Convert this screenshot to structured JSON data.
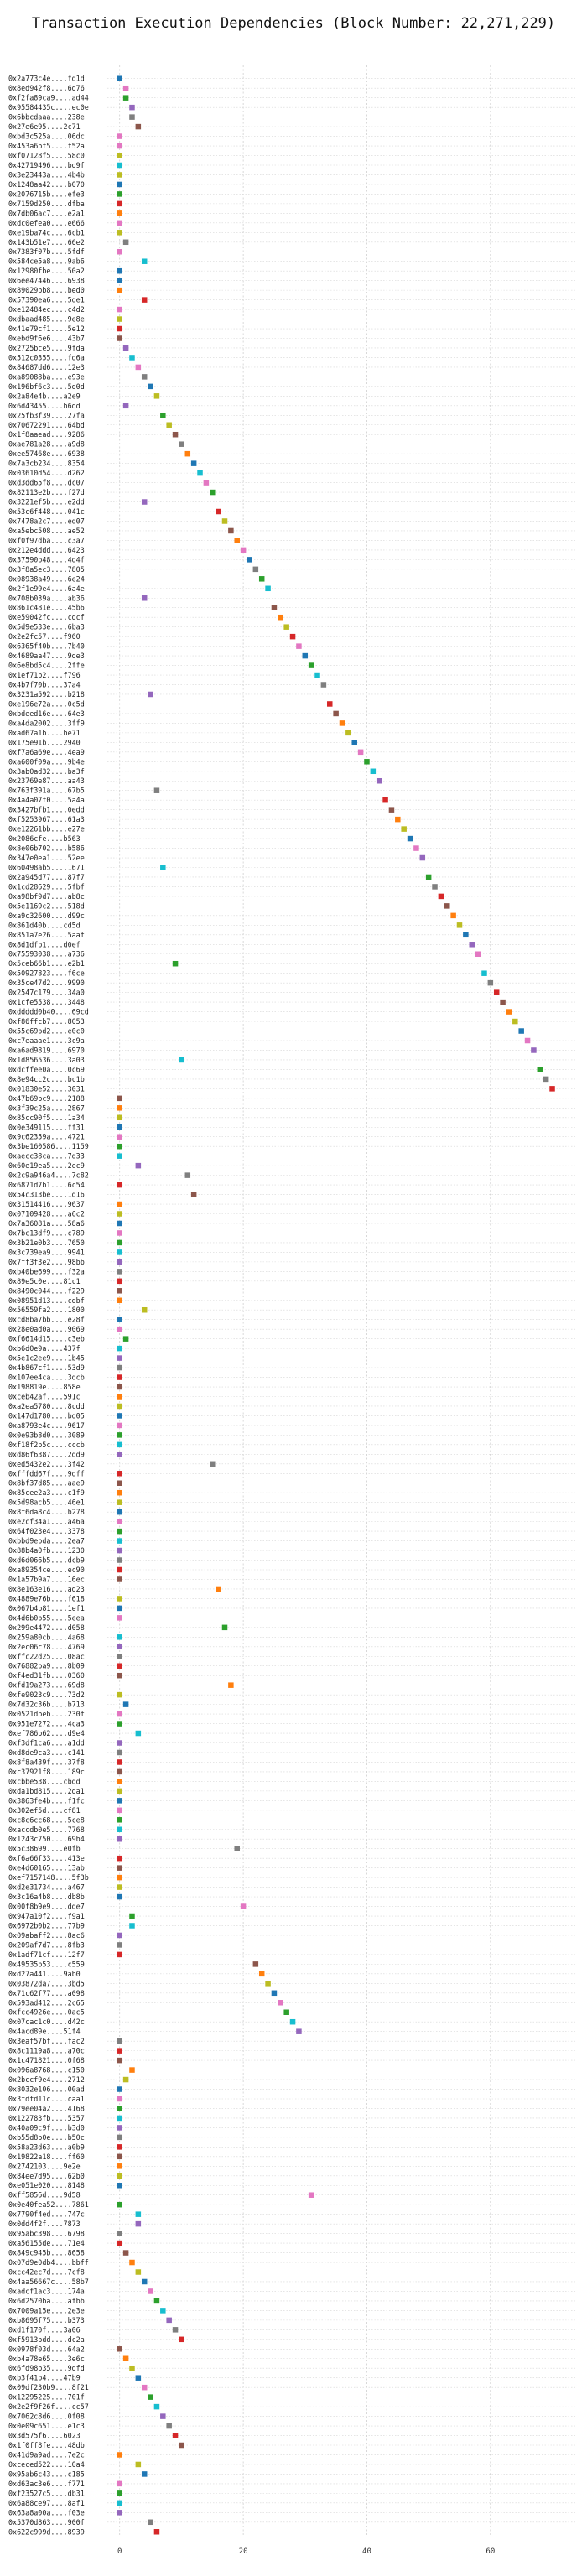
{
  "chart_data": {
    "type": "scatter",
    "title": "Transaction Execution Dependencies (Block Number: 22,271,229)",
    "xlabel": "",
    "ylabel": "",
    "xlim": [
      -2,
      74
    ],
    "xticks": [
      0,
      20,
      40,
      60
    ],
    "grid": true,
    "palette": [
      "#1f77b4",
      "#ff7f0e",
      "#2ca02c",
      "#d62728",
      "#9467bd",
      "#8c564b",
      "#e377c2",
      "#7f7f7f",
      "#bcbd22",
      "#17becf"
    ],
    "categories": [
      "0x2a773c4e....fd1d",
      "0x8ed942f8....6d76",
      "0xf2fa89ca9....ad44",
      "0x95584435c....ec0e",
      "0x6bbcdaaa....238e",
      "0x27e6e95....2c71",
      "0xbd3c525a....06dc",
      "0x453a6bf5....f52a",
      "0xf07128f5....58c0",
      "0x42719496....bd9f",
      "0x3e23443a....4b4b",
      "0x1248aa42....b070",
      "0x2076715b....efe3",
      "0x7159d250....dfba",
      "0x7db06ac7....e2a1",
      "0xdc0efea0....e666",
      "0xe19ba74c....6cb1",
      "0x143b51e7....66e2",
      "0x7383f07b....5fdf",
      "0x584ce5a8....9ab6",
      "0x12980fbe....50a2",
      "0x6ee47446....6938",
      "0x89029bb8....bed0",
      "0x57390ea6....5de1",
      "0xe12484ec....c4d2",
      "0xdbaad485....9e8e",
      "0x41e79cf1....5e12",
      "0xebd9f6e6....43b7",
      "0x2725bce5....9fda",
      "0x512c0355....fd6a",
      "0x84687dd6....12e3",
      "0xa89088ba....e93e",
      "0x196bf6c3....5d0d",
      "0x2a84e4b....a2e9",
      "0x6d43455....b6dd",
      "0x25fb3f39....27fa",
      "0x70672291....64bd",
      "0x1f8aaead....9286",
      "0xae781a28....a9d8",
      "0xee57468e....6938",
      "0x7a3cb234....8354",
      "0x03610d54....d262",
      "0xd3dd65f8....dc07",
      "0x82113e2b....f27d",
      "0x3221ef5b....e2dd",
      "0x53c6f448....041c",
      "0x7478a2c7....ed07",
      "0xa5ebc508....ae52",
      "0xf0f97dba....c3a7",
      "0x212e4ddd....6423",
      "0x37590b48....4d4f",
      "0x3f8a5ec3....7805",
      "0x08938a49....6e24",
      "0x2f1e99e4....6a4e",
      "0x708b039a....ab36",
      "0x861c481e....45b6",
      "0xe59042fc....cdcf",
      "0x5d9e533e....6ba3",
      "0x2e2fc57....f960",
      "0x6365f40b....7b40",
      "0x4689aa47....9de3",
      "0x6e8bd5c4....2ffe",
      "0x1ef71b2....f796",
      "0x4b7f70b....37a4",
      "0x3231a592....b218",
      "0xe196e72a....0c5d",
      "0xbdeed16e....64e3",
      "0xa4da2002....3ff9",
      "0xad67a1b....be71",
      "0x175e91b....2940",
      "0xf7a6a69e....4ea9",
      "0xa600f09a....9b4e",
      "0x3ab0ad32....ba3f",
      "0x23769e87....aa43",
      "0x763f391a....67b5",
      "0x4a4a07f0....5a4a",
      "0x3427bfb1....0edd",
      "0xf5253967....61a3",
      "0xe12261bb....e27e",
      "0x2086cfe....b563",
      "0x8e06b702....b586",
      "0x347e0ea1....52ee",
      "0x60498ab5....1671",
      "0x2a945d77....87f7",
      "0x1cd28629....5fbf",
      "0xa98bf9d7....ab8c",
      "0x5e1169c2....518d",
      "0xa9c32600....d99c",
      "0x861d40b....cd5d",
      "0x851a7e26....5aaf",
      "0x8d1dfb1....d0ef",
      "0x75593038....a736",
      "0x5ceb66b1....e2b1",
      "0x50927823....f6ce",
      "0x35ce47d2....9990",
      "0x2547c179....34a0",
      "0x1cfe5538....3448",
      "0xddddd0b40....69cd",
      "0xf86ffcb7....8053",
      "0x55c69bd2....e0c0",
      "0xc7eaaae1....3c9a",
      "0xa6ad9819....6970",
      "0x1d856536....3a03",
      "0xdcffee0a....0c69",
      "0x8e94cc2c....bc1b",
      "0x01830e52....3031",
      "0x47b69bc9....2188",
      "0x3f39c25a....2867",
      "0x85cc90f5....1a34",
      "0x0e349115....ff31",
      "0x9c62359a....4721",
      "0x3be160586....1159",
      "0xaecc38ca....7d33",
      "0x60e19ea5....2ec9",
      "0x2c9a946a4....7c82",
      "0x6871d7b1....6c54",
      "0x54c313be....1d16",
      "0x31514416....9637",
      "0x07109428....a6c2",
      "0x7a36081a....58a6",
      "0x7bc13df9....c789",
      "0x3b21e0b3....7650",
      "0x3c739ea9....9941",
      "0x7ff3f3e2....98bb",
      "0xb40be699....f32a",
      "0x89e5c0e....81c1",
      "0x8490c044....f229",
      "0x08951d13....cdbf",
      "0x56559fa2....1800",
      "0xcd8ba7bb....e28f",
      "0x28e0ad0a....9069",
      "0xf6614d15....c3eb",
      "0xb6d0e9a....437f",
      "0x5e1c2ee9....1b45",
      "0x4b867cf1....53d9",
      "0x107ee4ca....3dcb",
      "0x198819e....858e",
      "0xceb42af....591c",
      "0xa2ea5780....8cdd",
      "0x147d1780....bd05",
      "0xa8793e4c....9617",
      "0x0e93b8d0....3089",
      "0xf18f2b5c....cccb",
      "0xd86f6387....2dd9",
      "0xed5432e2....3f42",
      "0xfffdd67f....9dff",
      "0x8bf37d85....aae9",
      "0x85cee2a3....c1f9",
      "0x5d98acb5....46e1",
      "0x8f6da8c4....b278",
      "0xe2cf34a1....a46a",
      "0x64f023e4....3378",
      "0xbbd9ebda....2ea7",
      "0x88b4a0fb....1230",
      "0xd6d066b5....dcb9",
      "0xa89354ce....ec90",
      "0x1a57b9a7....16ec",
      "0x8e163e16....ad23",
      "0x4889e76b....f618",
      "0x067b4b81....1ef1",
      "0x4d6b0b55....5eea",
      "0x299e4472....d058",
      "0x259a80cb....4a68",
      "0x2ec06c78....4769",
      "0xffc22d25....08ac",
      "0x76882ba9....8b09",
      "0xf4ed31fb....0360",
      "0xfd19a273....69d8",
      "0xfe9023c9....73d2",
      "0x7d32c36b....b713",
      "0x0521dbeb....230f",
      "0x951e7272....4ca3",
      "0xef786b62....d9e4",
      "0xf3df1ca6....a1dd",
      "0xd8de9ca3....c141",
      "0x8f8a439f....37f8",
      "0xc37921f8....189c",
      "0xcbbe538....cbdd",
      "0xda1bd815....2da1",
      "0x3863fe4b....f1fc",
      "0x302ef5d....cf81",
      "0xc8c6cc68....5ce8",
      "0xaccdb0e5....7768",
      "0x1243c750....69b4",
      "0x5c38699....e0fb",
      "0xf6a66f33....413e",
      "0xe4d60165....13ab",
      "0xef7157148....5f3b",
      "0xd2e31734....a467",
      "0x3c16a4b8....db8b",
      "0x00f8b9e9....dde7",
      "0x947a10f2....f9a1",
      "0x6972b0b2....77b9",
      "0x09abaff2....8ac6",
      "0x209af7d7....8fb3",
      "0x1adf71cf....12f7",
      "0x49535b53....c559",
      "0xd27a441....9ab0",
      "0x03872da7....3bd5",
      "0x71c62f77....a098",
      "0x593ad412....2c65",
      "0xfcc4926e....0ac5",
      "0x07cac1c0....d42c",
      "0x4acd89e....51f4",
      "0x3eaf57bf....fac2",
      "0x8c1119a8....a70c",
      "0x1c471821....0f68",
      "0x096a8768....c150",
      "0x2bccf9e4....2712",
      "0x8032e106....00ad",
      "0x3fdfd11c....caa1",
      "0x79ee04a2....4168",
      "0x122783fb....5357",
      "0x40a09c9f....b3d0",
      "0xb55d8b0e....b50c",
      "0x58a23d63....a0b9",
      "0x19822a18....ff60",
      "0x2742103....9e2e",
      "0x84ee7d95....62b0",
      "0xe051e020....8148",
      "0xff5856d....9d58",
      "0x0e40fea52....7861",
      "0x7790f4ed....747c",
      "0x0dd4f2f....7873",
      "0x95abc398....6798",
      "0xa56155de....71e4",
      "0x849c945b....8658",
      "0x07d9e0db4....bbff",
      "0xcc42ec7d....7cf8",
      "0x4aa56667c....58b7",
      "0xadcf1ac3....174a",
      "0x6d2570ba....afbb",
      "0x7009a15e....2e3e",
      "0xb8695f75....b373",
      "0xd1f170f....3a06",
      "0xf5913bdd....dc2a",
      "0x0978f03d....64a2",
      "0xb4a78e65....3e6c",
      "0x6fd98b35....9dfd",
      "0xb3f41b4....47b9",
      "0x09df230b9....8f21",
      "0x12295225....701f",
      "0x2e2f9f26f....cc57",
      "0x7062c8d6....0f08",
      "0x0e09c651....e1c3",
      "0x3d575f6....6023",
      "0x1f0ff8fe....48db",
      "0x41d9a9ad....7e2c",
      "0xceced522....10a4",
      "0x95ab6c43....c185",
      "0xd63ac3e6....f771",
      "0xf23527c5....db31",
      "0x6a88ce97....8af1",
      "0x63a8a00a....f03e",
      "0x5370d863....900f",
      "0x622c999d....8939"
    ],
    "x": [
      0,
      1,
      1,
      2,
      2,
      3,
      0,
      0,
      0,
      0,
      0,
      0,
      0,
      0,
      0,
      0,
      0,
      1,
      0,
      4,
      0,
      0,
      0,
      4,
      0,
      0,
      0,
      0,
      1,
      2,
      3,
      4,
      5,
      6,
      1,
      7,
      8,
      9,
      10,
      11,
      12,
      13,
      14,
      15,
      4,
      16,
      17,
      18,
      19,
      20,
      21,
      22,
      23,
      24,
      4,
      25,
      26,
      27,
      28,
      29,
      30,
      31,
      32,
      33,
      5,
      34,
      35,
      36,
      37,
      38,
      39,
      40,
      41,
      42,
      6,
      43,
      44,
      45,
      46,
      47,
      48,
      49,
      7,
      50,
      51,
      52,
      53,
      54,
      55,
      56,
      57,
      58,
      9,
      59,
      60,
      61,
      62,
      63,
      64,
      65,
      66,
      67,
      10,
      68,
      69,
      70,
      0,
      0,
      0,
      0,
      0,
      0,
      0,
      3,
      11,
      0,
      12,
      0,
      0,
      0,
      0,
      0,
      0,
      0,
      0,
      0,
      0,
      0,
      4,
      0,
      0,
      1,
      0,
      0,
      0,
      0,
      0,
      0,
      0,
      0,
      0,
      0,
      0,
      0,
      15,
      0,
      0,
      0,
      0,
      0,
      0,
      0,
      0,
      0,
      0,
      0,
      0,
      16,
      0,
      0,
      0,
      17,
      0,
      0,
      0,
      0,
      0,
      18,
      0,
      1,
      0,
      0,
      3,
      0,
      0,
      0,
      0,
      0,
      0,
      0,
      0,
      0,
      0,
      0,
      19,
      0,
      0,
      0,
      0,
      0,
      20,
      2,
      2,
      0,
      0,
      0,
      22,
      23,
      24,
      25,
      26,
      27,
      28,
      29,
      0,
      0,
      0,
      2,
      1,
      0,
      0,
      0,
      0,
      0,
      0,
      0,
      0,
      0,
      0,
      0,
      31,
      0,
      3,
      3,
      0,
      0,
      1,
      2,
      3,
      4,
      5,
      6,
      7,
      8,
      9,
      10,
      0,
      1,
      2,
      3,
      4,
      5,
      6,
      7,
      8,
      9,
      10,
      0,
      3,
      4,
      0,
      0,
      0,
      0,
      5,
      6,
      0,
      0,
      0,
      0,
      0,
      0,
      0,
      0,
      0,
      0,
      0,
      0,
      0,
      0,
      0,
      0
    ],
    "colors": [
      0,
      6,
      2,
      4,
      7,
      5,
      6,
      6,
      8,
      9,
      8,
      0,
      2,
      3,
      1,
      6,
      8,
      7,
      6,
      9,
      0,
      0,
      1,
      3,
      6,
      8,
      3,
      5,
      4,
      9,
      6,
      7,
      0,
      8,
      4,
      2,
      8,
      5,
      7,
      1,
      0,
      9,
      6,
      2,
      4,
      3,
      8,
      5,
      1,
      6,
      0,
      7,
      2,
      9,
      4,
      5,
      1,
      8,
      3,
      6,
      0,
      2,
      9,
      7,
      4,
      3,
      5,
      1,
      8,
      0,
      6,
      2,
      9,
      4,
      7,
      3,
      5,
      1,
      8,
      0,
      6,
      4,
      9,
      2,
      7,
      3,
      5,
      1,
      8,
      0,
      4,
      6,
      2,
      9,
      7,
      3,
      5,
      1,
      8,
      0,
      6,
      4,
      9,
      2,
      7,
      3,
      5,
      1,
      8,
      0,
      6,
      2,
      9,
      4,
      7,
      3,
      5,
      1,
      8,
      0,
      6,
      2,
      9,
      4,
      7,
      3,
      5,
      1,
      8,
      0,
      6,
      2,
      9,
      4,
      7,
      3,
      5,
      1,
      8,
      0,
      6,
      2,
      9,
      4,
      7,
      3,
      5,
      1,
      8,
      0,
      6,
      2,
      9,
      4,
      7,
      3,
      5,
      1,
      8,
      0,
      6,
      2,
      9,
      4,
      7,
      3,
      5,
      1,
      8,
      0,
      6,
      2,
      9,
      4,
      7,
      3,
      5,
      1,
      8,
      0,
      6,
      2,
      9,
      4,
      7,
      3,
      5,
      1,
      8,
      0,
      6,
      2,
      9,
      4,
      7,
      3,
      5,
      1,
      8,
      0,
      6,
      2,
      9,
      4,
      7,
      3,
      5,
      1,
      8,
      0,
      6,
      2,
      9,
      4,
      7,
      3,
      5,
      1,
      8,
      0,
      6,
      2,
      9,
      4,
      7,
      3,
      5,
      1,
      8,
      0,
      6,
      2,
      9,
      4,
      7,
      3,
      5,
      1,
      8,
      0,
      6,
      2,
      9,
      4,
      7,
      3,
      5,
      1,
      8,
      0,
      6,
      2,
      9,
      4,
      7,
      3,
      5,
      1,
      8,
      0,
      6,
      2,
      9,
      4,
      7,
      3,
      5,
      1,
      8,
      0,
      6,
      2,
      9,
      4,
      7,
      3,
      5,
      1
    ]
  }
}
